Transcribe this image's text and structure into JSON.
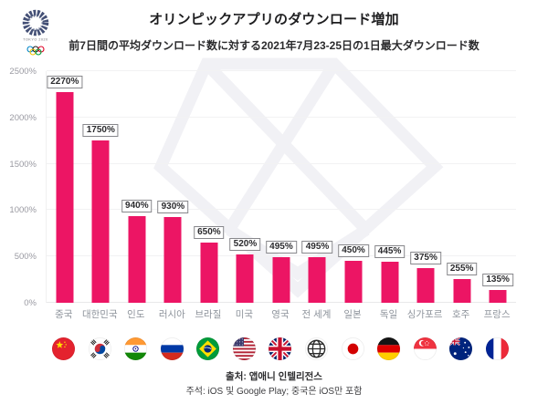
{
  "header": {
    "title": "オリンピックアプリのダウンロード増加",
    "subtitle": "前7日間の平均ダウンロード数に対する2021年7月23-25日の1日最大ダウンロード数",
    "logo_icon": "tokyo-2020-olympics-logo"
  },
  "watermark_icon": "gem-diamond-watermark",
  "chart_data": {
    "type": "bar",
    "title": "オリンピックアプリのダウンロード増加",
    "subtitle": "前7日間の平均ダウンロード数に対する2021年7月23-25日の1日最大ダウンロード数",
    "categories": [
      "중국",
      "대한민국",
      "인도",
      "러시아",
      "브라질",
      "미국",
      "영국",
      "전 세계",
      "일본",
      "독일",
      "싱가포르",
      "호주",
      "프랑스"
    ],
    "values": [
      2270,
      1750,
      940,
      930,
      650,
      520,
      495,
      495,
      450,
      445,
      375,
      255,
      135
    ],
    "value_labels": [
      "2270%",
      "1750%",
      "940%",
      "930%",
      "650%",
      "520%",
      "495%",
      "495%",
      "450%",
      "445%",
      "375%",
      "255%",
      "135%"
    ],
    "flag_icons": [
      "china-flag-icon",
      "south-korea-flag-icon",
      "india-flag-icon",
      "russia-flag-icon",
      "brazil-flag-icon",
      "usa-flag-icon",
      "uk-flag-icon",
      "worldwide-globe-icon",
      "japan-flag-icon",
      "germany-flag-icon",
      "singapore-flag-icon",
      "australia-flag-icon",
      "france-flag-icon"
    ],
    "y_ticks": [
      "0%",
      "500%",
      "1000%",
      "1500%",
      "2000%",
      "2500%"
    ],
    "y_tick_values": [
      0,
      500,
      1000,
      1500,
      2000,
      2500
    ],
    "ylim": [
      0,
      2500
    ],
    "grid": true,
    "legend": "none",
    "bar_color": "#EC1564",
    "xlabel": "",
    "ylabel": ""
  },
  "footer": {
    "source": "출처: 앱애니 인텔리전스",
    "note": "주석: iOS 및 Google Play; 중국은 iOS만 포함"
  }
}
